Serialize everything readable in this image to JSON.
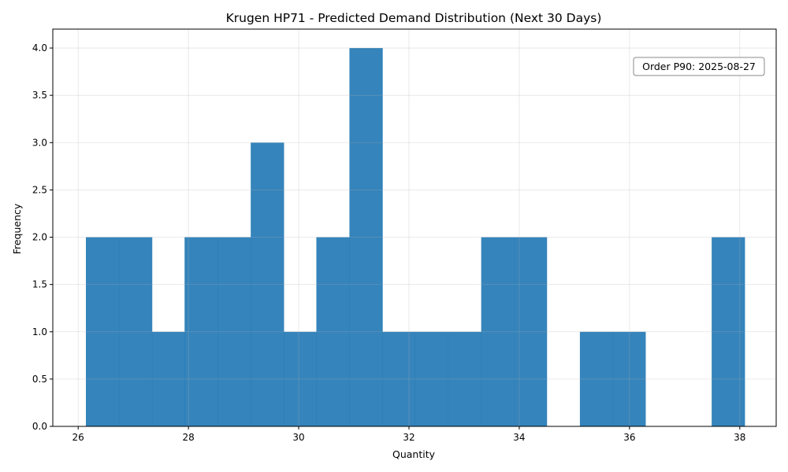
{
  "chart_data": {
    "type": "bar",
    "title": "Krugen HP71 - Predicted Demand Distribution (Next 30 Days)",
    "xlabel": "Quantity",
    "ylabel": "Frequency",
    "xlim": [
      25.54,
      38.66
    ],
    "ylim": [
      0,
      4.2
    ],
    "xticks": [
      "26",
      "28",
      "30",
      "32",
      "34",
      "36",
      "38"
    ],
    "yticks": [
      "0.0",
      "0.5",
      "1.0",
      "1.5",
      "2.0",
      "2.5",
      "3.0",
      "3.5",
      "4.0"
    ],
    "bin_edges": [
      26.14,
      26.74,
      27.34,
      27.93,
      28.53,
      29.13,
      29.73,
      30.32,
      30.92,
      31.52,
      32.11,
      32.71,
      33.31,
      33.91,
      34.5,
      35.1,
      35.7,
      36.29,
      36.89,
      37.49,
      38.09
    ],
    "values": [
      2,
      2,
      1,
      2,
      2,
      3,
      1,
      2,
      4,
      1,
      1,
      1,
      2,
      2,
      0,
      1,
      1,
      0,
      0,
      2
    ],
    "grid": true,
    "bar_color": "#1f77b4",
    "annotation": "Order P90: 2025-08-27",
    "annotation_position": "top-right"
  }
}
